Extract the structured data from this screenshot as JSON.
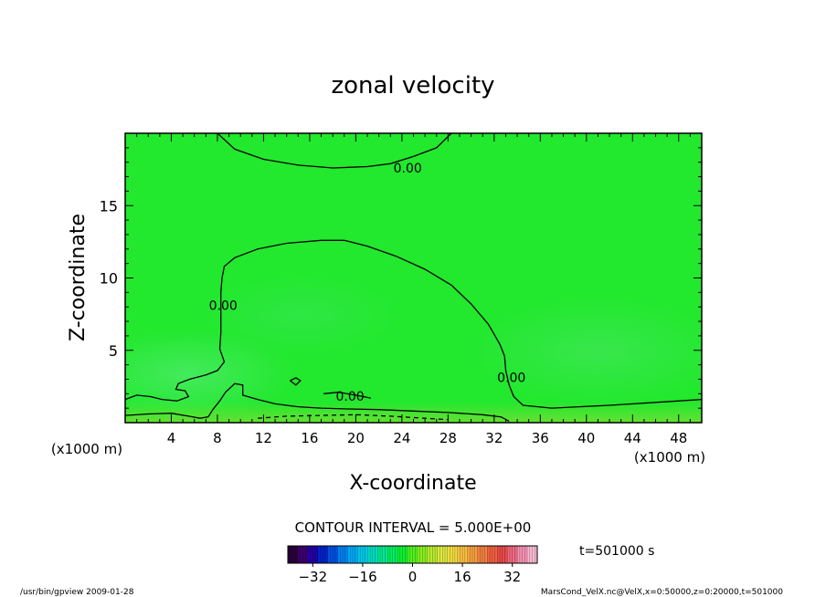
{
  "chart_data": {
    "type": "heatmap",
    "title": "zonal velocity",
    "xlabel": "X-coordinate",
    "ylabel": "Z-coordinate",
    "x_unit_label": "(x1000 m)",
    "x_unit_label_right": "(x1000 m)",
    "xlim": [
      0,
      50
    ],
    "ylim": [
      0,
      20
    ],
    "x_ticks": [
      4,
      8,
      12,
      16,
      20,
      24,
      28,
      32,
      36,
      40,
      44,
      48
    ],
    "y_ticks": [
      5,
      10,
      15
    ],
    "contour_interval_text": "CONTOUR INTERVAL = 5.000E+00",
    "contour_labels": [
      {
        "text": "0.00",
        "x": 24.5,
        "z": 17.3
      },
      {
        "text": "0.00",
        "x": 8.5,
        "z": 7.8
      },
      {
        "text": "0.00",
        "x": 19.5,
        "z": 1.5
      },
      {
        "text": "0.00",
        "x": 33.5,
        "z": 2.8
      }
    ],
    "contours": [
      {
        "level": 0.0,
        "style": "solid",
        "points": [
          [
            8,
            20
          ],
          [
            9.5,
            18.9
          ],
          [
            12,
            18.2
          ],
          [
            15,
            17.8
          ],
          [
            18,
            17.6
          ],
          [
            21,
            17.7
          ],
          [
            23,
            17.9
          ],
          [
            25,
            18.4
          ],
          [
            27,
            19.0
          ],
          [
            28.3,
            20
          ]
        ]
      },
      {
        "level": 0.0,
        "style": "solid",
        "points": [
          [
            0,
            1.6
          ],
          [
            1,
            1.9
          ],
          [
            2.2,
            1.8
          ],
          [
            3.2,
            1.6
          ],
          [
            4.5,
            1.5
          ],
          [
            5.5,
            1.8
          ],
          [
            5.2,
            2.2
          ],
          [
            4.4,
            2.3
          ],
          [
            4.6,
            2.7
          ],
          [
            5.6,
            3.0
          ],
          [
            7.0,
            3.3
          ],
          [
            8.0,
            3.6
          ],
          [
            8.6,
            4.2
          ],
          [
            8.2,
            5.1
          ],
          [
            8.3,
            6.2
          ],
          [
            8.3,
            7.6
          ],
          [
            8.3,
            9.0
          ],
          [
            8.4,
            10.0
          ],
          [
            8.6,
            10.8
          ],
          [
            9.5,
            11.4
          ],
          [
            11.5,
            12.0
          ],
          [
            14,
            12.4
          ],
          [
            17,
            12.6
          ],
          [
            19,
            12.6
          ],
          [
            21,
            12.2
          ],
          [
            23.5,
            11.5
          ],
          [
            26,
            10.6
          ],
          [
            28.3,
            9.5
          ],
          [
            30,
            8.2
          ],
          [
            31.5,
            6.8
          ],
          [
            32.5,
            5.4
          ],
          [
            32.9,
            4.6
          ],
          [
            33.0,
            3.6
          ],
          [
            33.3,
            2.6
          ],
          [
            33.7,
            1.8
          ],
          [
            34.5,
            1.2
          ],
          [
            37,
            1.0
          ],
          [
            42,
            1.2
          ],
          [
            46,
            1.4
          ],
          [
            50,
            1.6
          ]
        ]
      },
      {
        "level": 0.0,
        "style": "solid",
        "points": [
          [
            0,
            0.5
          ],
          [
            2,
            0.6
          ],
          [
            4,
            0.65
          ],
          [
            5.5,
            0.45
          ],
          [
            6.5,
            0.3
          ],
          [
            7.2,
            0.4
          ],
          [
            7.6,
            0.9
          ],
          [
            8.2,
            1.5
          ],
          [
            8.7,
            2.1
          ],
          [
            9.5,
            2.7
          ],
          [
            10.2,
            2.6
          ],
          [
            10.2,
            1.9
          ],
          [
            11.5,
            1.6
          ],
          [
            13,
            1.3
          ],
          [
            15,
            1.1
          ],
          [
            17,
            1.0
          ],
          [
            19,
            0.95
          ],
          [
            22,
            0.9
          ],
          [
            25,
            0.8
          ],
          [
            28,
            0.7
          ],
          [
            31,
            0.55
          ],
          [
            32.6,
            0.4
          ],
          [
            33.3,
            0.1
          ]
        ]
      },
      {
        "level": 0.0,
        "style": "solid",
        "points": [
          [
            14.3,
            2.9
          ],
          [
            14.8,
            3.1
          ],
          [
            15.2,
            2.9
          ],
          [
            14.8,
            2.6
          ],
          [
            14.3,
            2.9
          ]
        ]
      },
      {
        "level": 0.0,
        "style": "solid",
        "points": [
          [
            17.2,
            2.0
          ],
          [
            18.5,
            2.1
          ],
          [
            20,
            1.9
          ],
          [
            21.3,
            1.7
          ]
        ]
      },
      {
        "level": -5.0,
        "style": "dashed",
        "points": [
          [
            11.5,
            0.3
          ],
          [
            14,
            0.45
          ],
          [
            17,
            0.5
          ],
          [
            20,
            0.55
          ],
          [
            23,
            0.45
          ],
          [
            26,
            0.3
          ],
          [
            28,
            0.2
          ]
        ]
      }
    ],
    "colorbar": {
      "min": -40,
      "max": 40,
      "ticks": [
        -32,
        -16,
        0,
        16,
        32
      ],
      "colors": [
        "#2a003a",
        "#3a006e",
        "#2200a6",
        "#0022c8",
        "#0050e0",
        "#0080f0",
        "#00a8f8",
        "#00c8e8",
        "#00dcc0",
        "#00e890",
        "#00ee60",
        "#10f030",
        "#50f020",
        "#88ee20",
        "#b8ea30",
        "#dce840",
        "#f0dc40",
        "#f6c040",
        "#f6a040",
        "#f28040",
        "#ee6040",
        "#e84848",
        "#f06880",
        "#f490b0",
        "#f8b8d0"
      ]
    },
    "field_colors": {
      "background": "#22e82e",
      "light_patch": "#40e85a",
      "mid_patch": "#30e44a",
      "bottom_band": "#68e030"
    },
    "time_label": "t=501000 s",
    "footer_left": "/usr/bin/gpview  2009-01-28",
    "footer_right": "MarsCond_VelX.nc@VelX,x=0:50000,z=0:20000,t=501000"
  }
}
